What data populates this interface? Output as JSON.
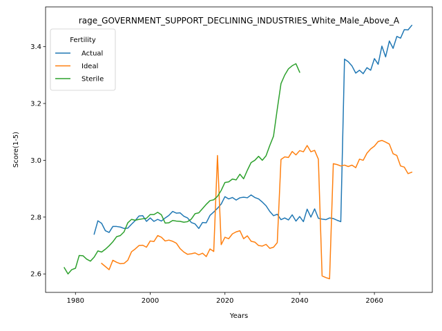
{
  "chart_data": {
    "type": "line",
    "title": "rage_GOVERNMENT_SUPPORT_DECLINING_INDUSTRIES_White_Male_Above_A",
    "xlabel": "Years",
    "ylabel": "Score(1-5)",
    "xlim": [
      1972,
      2075.5
    ],
    "ylim": [
      2.535,
      3.54
    ],
    "xticks": [
      1980,
      2000,
      2020,
      2040,
      2060
    ],
    "yticks": [
      2.6,
      2.8,
      3.0,
      3.2,
      3.4
    ],
    "xtick_labels": [
      "1980",
      "2000",
      "2020",
      "2040",
      "2060"
    ],
    "ytick_labels": [
      "2.6",
      "2.8",
      "3.0",
      "3.2",
      "3.4"
    ],
    "grid": false,
    "legend": {
      "title": "Fertility",
      "placement": "top-left"
    },
    "series": [
      {
        "name": "Actual",
        "color": "#1f77b4",
        "x": [
          1985,
          1986,
          1987,
          1988,
          1989,
          1990,
          1991,
          1992,
          1993,
          1994,
          1995,
          1996,
          1997,
          1998,
          1999,
          2000,
          2001,
          2002,
          2003,
          2004,
          2005,
          2006,
          2007,
          2008,
          2009,
          2010,
          2011,
          2012,
          2013,
          2014,
          2015,
          2016,
          2017,
          2018,
          2019,
          2020,
          2021,
          2022,
          2023,
          2024,
          2025,
          2026,
          2027,
          2028,
          2029,
          2030,
          2031,
          2032,
          2033,
          2034,
          2035,
          2036,
          2037,
          2038,
          2039,
          2040,
          2041,
          2042,
          2043,
          2044,
          2045,
          2046,
          2047,
          2048,
          2049,
          2050,
          2051,
          2052,
          2053,
          2054,
          2055,
          2056,
          2057,
          2058,
          2059,
          2060,
          2061,
          2062,
          2063,
          2064,
          2065,
          2066,
          2067,
          2068,
          2069,
          2070
        ],
        "values": [
          2.74,
          2.787,
          2.778,
          2.752,
          2.746,
          2.767,
          2.767,
          2.765,
          2.76,
          2.761,
          2.775,
          2.788,
          2.804,
          2.805,
          2.785,
          2.797,
          2.785,
          2.792,
          2.786,
          2.797,
          2.806,
          2.82,
          2.814,
          2.815,
          2.803,
          2.797,
          2.781,
          2.776,
          2.76,
          2.781,
          2.78,
          2.806,
          2.818,
          2.831,
          2.846,
          2.872,
          2.864,
          2.869,
          2.86,
          2.868,
          2.87,
          2.868,
          2.878,
          2.869,
          2.864,
          2.853,
          2.84,
          2.82,
          2.805,
          2.81,
          2.791,
          2.797,
          2.79,
          2.808,
          2.786,
          2.802,
          2.784,
          2.828,
          2.8,
          2.829,
          2.796,
          2.793,
          2.791,
          2.797,
          2.795,
          2.789,
          2.784,
          3.356,
          3.347,
          3.332,
          3.307,
          3.317,
          3.305,
          3.326,
          3.317,
          3.358,
          3.338,
          3.402,
          3.364,
          3.42,
          3.394,
          3.436,
          3.43,
          3.46,
          3.459,
          3.475
        ]
      },
      {
        "name": "Ideal",
        "color": "#ff7f0e",
        "x": [
          1987,
          1988,
          1989,
          1990,
          1991,
          1992,
          1993,
          1994,
          1995,
          1996,
          1997,
          1998,
          1999,
          2000,
          2001,
          2002,
          2003,
          2004,
          2005,
          2006,
          2007,
          2008,
          2009,
          2010,
          2011,
          2012,
          2013,
          2014,
          2015,
          2016,
          2017,
          2018,
          2019,
          2020,
          2021,
          2022,
          2023,
          2024,
          2025,
          2026,
          2027,
          2028,
          2029,
          2030,
          2031,
          2032,
          2033,
          2034,
          2035,
          2036,
          2037,
          2038,
          2039,
          2040,
          2041,
          2042,
          2043,
          2044,
          2045,
          2046,
          2047,
          2048,
          2049,
          2050,
          2051,
          2052,
          2053,
          2054,
          2055,
          2056,
          2057,
          2058,
          2059,
          2060,
          2061,
          2062,
          2063,
          2064,
          2065,
          2066,
          2067,
          2068,
          2069,
          2070
        ],
        "values": [
          2.637,
          2.626,
          2.615,
          2.648,
          2.641,
          2.636,
          2.637,
          2.648,
          2.678,
          2.688,
          2.7,
          2.701,
          2.694,
          2.716,
          2.714,
          2.735,
          2.729,
          2.716,
          2.719,
          2.715,
          2.708,
          2.689,
          2.677,
          2.669,
          2.671,
          2.674,
          2.667,
          2.673,
          2.661,
          2.688,
          2.679,
          3.017,
          2.703,
          2.729,
          2.724,
          2.741,
          2.748,
          2.752,
          2.724,
          2.734,
          2.715,
          2.712,
          2.7,
          2.698,
          2.704,
          2.69,
          2.694,
          2.71,
          3.003,
          3.012,
          3.01,
          3.031,
          3.019,
          3.034,
          3.03,
          3.052,
          3.03,
          3.035,
          3.004,
          2.593,
          2.587,
          2.583,
          2.988,
          2.985,
          2.98,
          2.983,
          2.978,
          2.983,
          2.974,
          3.004,
          3.0,
          3.025,
          3.04,
          3.05,
          3.066,
          3.07,
          3.064,
          3.057,
          3.023,
          3.017,
          2.98,
          2.976,
          2.953,
          2.958
        ]
      },
      {
        "name": "Sterile",
        "color": "#2ca02c",
        "x": [
          1977,
          1978,
          1979,
          1980,
          1981,
          1982,
          1983,
          1984,
          1985,
          1986,
          1987,
          1988,
          1989,
          1990,
          1991,
          1992,
          1993,
          1994,
          1995,
          1996,
          1997,
          1998,
          1999,
          2000,
          2001,
          2002,
          2003,
          2004,
          2005,
          2006,
          2007,
          2008,
          2009,
          2010,
          2011,
          2012,
          2013,
          2014,
          2015,
          2016,
          2017,
          2018,
          2019,
          2020,
          2021,
          2022,
          2023,
          2024,
          2025,
          2026,
          2027,
          2028,
          2029,
          2030,
          2031,
          2032,
          2033,
          2034,
          2035,
          2036,
          2037,
          2038,
          2039,
          2040
        ],
        "values": [
          2.622,
          2.6,
          2.615,
          2.62,
          2.665,
          2.664,
          2.652,
          2.645,
          2.659,
          2.681,
          2.677,
          2.687,
          2.699,
          2.713,
          2.731,
          2.735,
          2.748,
          2.78,
          2.792,
          2.789,
          2.792,
          2.794,
          2.796,
          2.809,
          2.809,
          2.817,
          2.808,
          2.779,
          2.78,
          2.788,
          2.786,
          2.785,
          2.782,
          2.784,
          2.793,
          2.812,
          2.815,
          2.83,
          2.845,
          2.858,
          2.861,
          2.873,
          2.894,
          2.922,
          2.924,
          2.934,
          2.931,
          2.951,
          2.935,
          2.965,
          2.992,
          3.0,
          3.014,
          3.0,
          3.016,
          3.052,
          3.085,
          3.18,
          3.27,
          3.3,
          3.322,
          3.333,
          3.34,
          3.31
        ]
      }
    ]
  }
}
